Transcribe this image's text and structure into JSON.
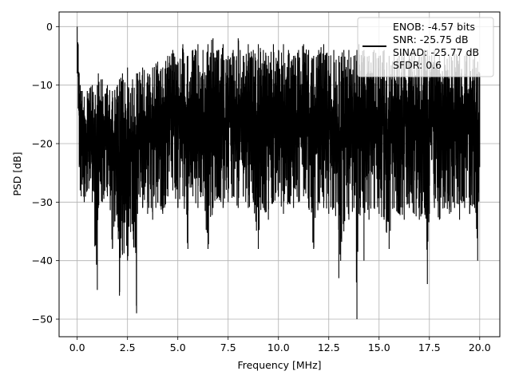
{
  "chart_data": {
    "type": "line",
    "title": "",
    "xlabel": "Frequency [MHz]",
    "ylabel": "PSD [dB]",
    "xlim": [
      -0.9,
      21.0
    ],
    "ylim": [
      -53.0,
      2.5
    ],
    "xticks": [
      0.0,
      2.5,
      5.0,
      7.5,
      10.0,
      12.5,
      15.0,
      17.5,
      20.0
    ],
    "xtick_labels": [
      "0.0",
      "2.5",
      "5.0",
      "7.5",
      "10.0",
      "12.5",
      "15.0",
      "17.5",
      "20.0"
    ],
    "yticks": [
      0,
      -10,
      -20,
      -30,
      -40,
      -50
    ],
    "ytick_labels": [
      "0",
      "−10",
      "−20",
      "−30",
      "−40",
      "−50"
    ],
    "grid": true,
    "legend_position": "top-right",
    "series": [
      {
        "name": "ENOB: -4.57 bits\nSNR: -25.75 dB\nSINAD: -25.77 dB\nSFDR: 0.6",
        "color": "#000000",
        "x": [
          0,
          0.05,
          0.1,
          0.15,
          0.2,
          0.25,
          0.35,
          0.5,
          0.75,
          1.0,
          1.05,
          1.25,
          1.5,
          1.75,
          2.0,
          2.1,
          2.25,
          2.5,
          2.75,
          2.95,
          3.0,
          3.25,
          3.5,
          3.75,
          4.0,
          4.25,
          4.5,
          4.75,
          5.0,
          5.25,
          5.5,
          5.75,
          6.0,
          6.25,
          6.5,
          6.75,
          7.0,
          7.25,
          7.5,
          7.75,
          8.0,
          8.25,
          8.5,
          8.75,
          9.0,
          9.25,
          9.5,
          9.75,
          10.0,
          10.25,
          10.5,
          10.75,
          11.0,
          11.25,
          11.5,
          11.75,
          12.0,
          12.25,
          12.5,
          12.75,
          13.0,
          13.25,
          13.5,
          13.75,
          13.9,
          14.0,
          14.25,
          14.5,
          14.75,
          15.0,
          15.25,
          15.5,
          15.75,
          16.0,
          16.25,
          16.5,
          16.75,
          17.0,
          17.25,
          17.4,
          17.5,
          17.75,
          18.0,
          18.25,
          18.5,
          18.75,
          19.0,
          19.25,
          19.5,
          19.75,
          19.9,
          20.0
        ],
        "upper": [
          0,
          -3,
          -8,
          -10,
          -11,
          -11,
          -12,
          -11,
          -10,
          -10,
          -8,
          -9,
          -10,
          -11,
          -10,
          -9,
          -8,
          -7,
          -9,
          -8,
          -8,
          -7,
          -8,
          -7,
          -6,
          -7,
          -5,
          -4,
          -6,
          -3,
          -5,
          -4,
          -3,
          -4,
          -3,
          -2,
          -4,
          -3,
          -5,
          -4,
          -2,
          -5,
          -3,
          -4,
          -3,
          -4,
          -5,
          -3,
          -4,
          -3,
          -4,
          -5,
          -4,
          -3,
          -4,
          -5,
          -4,
          -3,
          -5,
          -4,
          -5,
          -4,
          -4,
          -5,
          -4,
          -3,
          -4,
          -5,
          -4,
          -5,
          -4,
          -5,
          -4,
          -5,
          -4,
          -5,
          -4,
          -5,
          -4,
          -4,
          -5,
          -4,
          -5,
          -4,
          -5,
          -4,
          -5,
          -5,
          -4,
          -5,
          -6,
          -8
        ],
        "lower": [
          -8,
          -14,
          -24,
          -28,
          -29,
          -27,
          -30,
          -28,
          -30,
          -45,
          -31,
          -30,
          -29,
          -38,
          -32,
          -46,
          -39,
          -40,
          -33,
          -49,
          -32,
          -31,
          -32,
          -33,
          -30,
          -32,
          -29,
          -28,
          -31,
          -29,
          -38,
          -29,
          -31,
          -29,
          -38,
          -31,
          -29,
          -31,
          -30,
          -29,
          -31,
          -29,
          -31,
          -30,
          -38,
          -31,
          -33,
          -30,
          -29,
          -32,
          -30,
          -31,
          -30,
          -29,
          -31,
          -38,
          -30,
          -31,
          -32,
          -31,
          -43,
          -35,
          -33,
          -31,
          -50,
          -32,
          -40,
          -33,
          -31,
          -32,
          -33,
          -38,
          -31,
          -32,
          -33,
          -31,
          -32,
          -33,
          -31,
          -44,
          -32,
          -31,
          -33,
          -31,
          -32,
          -31,
          -33,
          -31,
          -32,
          -31,
          -40,
          -24
        ]
      }
    ],
    "annotations": []
  }
}
